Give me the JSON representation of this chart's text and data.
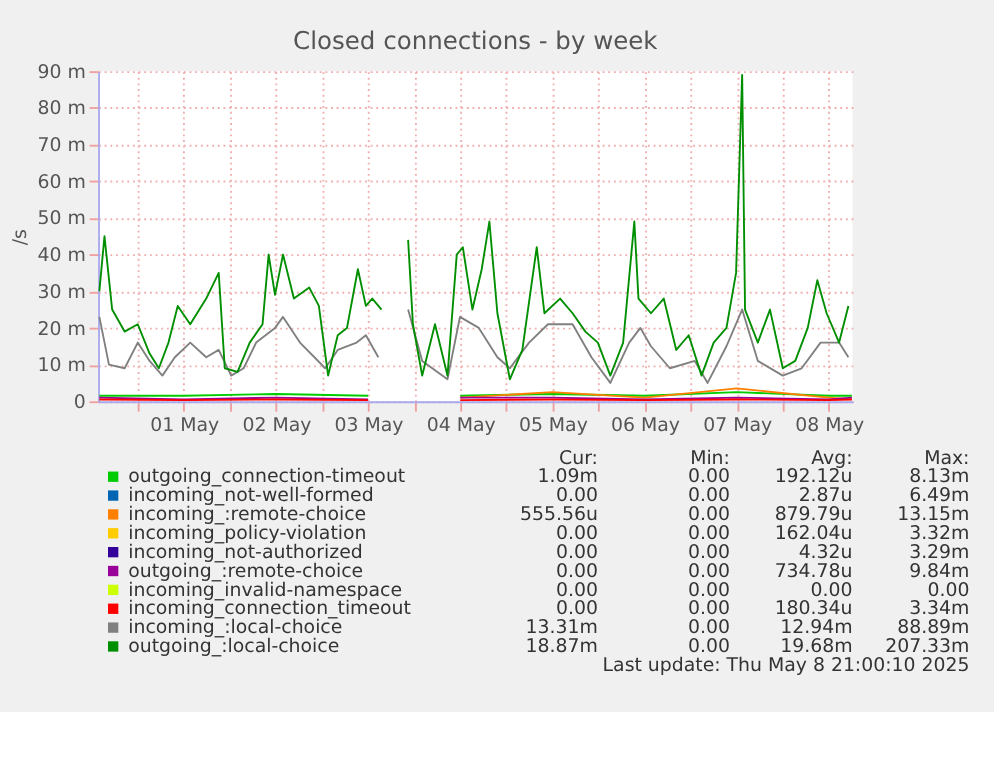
{
  "chart_data": {
    "type": "line",
    "title": "Closed connections - by week",
    "ylabel": "/s",
    "xlim": [
      "2025-04-30T13:40",
      "2025-05-08T18:10"
    ],
    "xticks": [
      {
        "value": "2025-05-01T00:00",
        "label": null
      },
      {
        "value": "2025-05-01T12:00",
        "label": "01 May"
      },
      {
        "value": "2025-05-02T00:00",
        "label": null
      },
      {
        "value": "2025-05-02T12:00",
        "label": "02 May"
      },
      {
        "value": "2025-05-03T00:00",
        "label": null
      },
      {
        "value": "2025-05-03T12:00",
        "label": "03 May"
      },
      {
        "value": "2025-05-04T00:00",
        "label": null
      },
      {
        "value": "2025-05-04T12:00",
        "label": "04 May"
      },
      {
        "value": "2025-05-05T00:00",
        "label": null
      },
      {
        "value": "2025-05-05T12:00",
        "label": "05 May"
      },
      {
        "value": "2025-05-06T00:00",
        "label": null
      },
      {
        "value": "2025-05-06T12:00",
        "label": "06 May"
      },
      {
        "value": "2025-05-07T00:00",
        "label": null
      },
      {
        "value": "2025-05-07T12:00",
        "label": "07 May"
      },
      {
        "value": "2025-05-08T00:00",
        "label": null
      },
      {
        "value": "2025-05-08T12:00",
        "label": "08 May"
      }
    ],
    "ylim": [
      0,
      90
    ],
    "yticks": [
      0,
      {
        "value": 10,
        "label": "10 m"
      },
      {
        "value": 20,
        "label": "20 m"
      },
      {
        "value": 30,
        "label": "30 m"
      },
      {
        "value": 40,
        "label": "40 m"
      },
      {
        "value": 50,
        "label": "50 m"
      },
      {
        "value": 60,
        "label": "60 m"
      },
      {
        "value": 70,
        "label": "70 m"
      },
      {
        "value": 80,
        "label": "80 m"
      },
      {
        "value": 90,
        "label": "90 m"
      }
    ],
    "grid": true,
    "legend": "bottom",
    "line_style": "solid",
    "marker": "none",
    "x": [
      "2025-04-30T14:00",
      "2025-05-01T12:00",
      "2025-05-02T12:00",
      "2025-05-03T12:00",
      "2025-05-03T18:00",
      "2025-05-04T12:00",
      "2025-05-05T12:00",
      "2025-05-06T12:00",
      "2025-05-07T12:00",
      "2025-05-08T12:00",
      "2025-05-08T18:00"
    ],
    "series": [
      {
        "name": "outgoing_connection-timeout",
        "color": "#00cc00",
        "values": [
          1.5,
          1.5,
          2,
          1.5,
          null,
          1.5,
          2,
          1.5,
          2.5,
          1.5,
          1.5
        ]
      },
      {
        "name": "incoming_not-well-formed",
        "color": "#0066b3",
        "values": [
          null,
          null,
          null,
          null,
          null,
          null,
          null,
          null,
          null,
          null,
          null
        ]
      },
      {
        "name": "incoming_:remote-choice",
        "color": "#ff8000",
        "values": [
          null,
          null,
          null,
          null,
          null,
          1,
          2.5,
          1,
          3.5,
          1,
          0.5
        ]
      },
      {
        "name": "incoming_policy-violation",
        "color": "#ffcc00",
        "values": [
          null,
          null,
          null,
          null,
          null,
          null,
          null,
          null,
          null,
          null,
          null
        ]
      },
      {
        "name": "incoming_not-authorized",
        "color": "#330099",
        "values": [
          null,
          null,
          null,
          null,
          null,
          null,
          null,
          null,
          null,
          null,
          null
        ]
      },
      {
        "name": "outgoing_:remote-choice",
        "color": "#990099",
        "values": [
          1,
          0.5,
          1,
          0.5,
          null,
          1,
          1,
          0.5,
          1,
          0.5,
          1
        ]
      },
      {
        "name": "incoming_invalid-namespace",
        "color": "#ccff00",
        "values": [
          null,
          null,
          null,
          null,
          null,
          null,
          null,
          null,
          null,
          null,
          null
        ]
      },
      {
        "name": "incoming_connection_timeout",
        "color": "#ff0000",
        "values": [
          0.5,
          0.3,
          0.5,
          0.3,
          null,
          0.3,
          0.5,
          0.3,
          0.5,
          0.3,
          0.5
        ]
      },
      {
        "name": "incoming_:local-choice",
        "color": "#808080",
        "x": [
          "2025-04-30T14:00",
          "2025-04-30T16:30",
          "2025-04-30T20:35",
          "2025-05-01T00:00",
          "2025-05-01T03:05",
          "2025-05-01T06:25",
          "2025-05-01T09:40",
          "2025-05-01T13:40",
          "2025-05-01T17:50",
          "2025-05-01T21:05",
          "2025-05-02T00:20",
          "2025-05-02T03:35",
          "2025-05-02T06:50",
          "2025-05-02T11:45",
          "2025-05-02T13:50",
          "2025-05-02T18:15",
          "2025-05-03T00:50",
          "2025-05-03T04:05",
          "2025-05-03T09:00",
          "2025-05-03T11:25",
          "2025-05-03T14:40",
          "2025-05-03T18:00",
          "2025-05-03T22:25",
          "2025-05-04T02:05",
          "2025-05-04T08:40",
          "2025-05-04T11:55",
          "2025-05-04T16:50",
          "2025-05-04T21:40",
          "2025-05-05T00:55",
          "2025-05-05T05:55",
          "2025-05-05T10:50",
          "2025-05-05T17:15",
          "2025-05-05T22:10",
          "2025-05-06T03:05",
          "2025-05-06T08:00",
          "2025-05-06T10:55",
          "2025-05-06T13:40",
          "2025-05-06T18:35",
          "2025-05-07T01:05",
          "2025-05-07T04:25",
          "2025-05-07T09:20",
          "2025-05-07T13:25",
          "2025-05-07T17:30",
          "2025-05-08T00:00",
          "2025-05-08T04:55",
          "2025-05-08T09:50",
          "2025-05-08T14:40",
          "2025-05-08T17:05"
        ],
        "values": [
          23,
          10,
          9,
          16,
          11,
          7,
          12,
          16,
          12,
          14,
          7,
          9,
          16,
          20,
          23,
          16,
          9,
          14,
          16,
          18,
          12,
          null,
          25,
          11,
          6,
          23,
          20,
          12,
          9,
          16,
          21,
          21,
          12,
          5,
          16,
          20,
          15,
          9,
          11,
          5,
          15,
          25,
          11,
          7,
          9,
          16,
          16,
          12
        ]
      },
      {
        "name": "outgoing_:local-choice",
        "color": "#008f00",
        "x": [
          "2025-04-30T14:00",
          "2025-04-30T15:20",
          "2025-04-30T17:20",
          "2025-04-30T20:35",
          "2025-05-01T00:00",
          "2025-05-01T03:05",
          "2025-05-01T05:30",
          "2025-05-01T08:00",
          "2025-05-01T10:25",
          "2025-05-01T13:40",
          "2025-05-01T17:50",
          "2025-05-01T21:05",
          "2025-05-01T22:40",
          "2025-05-02T02:00",
          "2025-05-02T05:10",
          "2025-05-02T08:30",
          "2025-05-02T10:05",
          "2025-05-02T11:45",
          "2025-05-02T13:50",
          "2025-05-02T16:40",
          "2025-05-02T20:40",
          "2025-05-02T23:10",
          "2025-05-03T01:35",
          "2025-05-03T04:05",
          "2025-05-03T06:30",
          "2025-05-03T09:20",
          "2025-05-03T11:25",
          "2025-05-03T13:05",
          "2025-05-03T15:30",
          "2025-05-03T18:00",
          "2025-05-03T22:25",
          "2025-05-03T23:40",
          "2025-05-04T02:05",
          "2025-05-04T05:25",
          "2025-05-04T08:40",
          "2025-05-04T11:05",
          "2025-05-04T12:40",
          "2025-05-04T15:10",
          "2025-05-04T17:35",
          "2025-05-04T19:35",
          "2025-05-04T21:40",
          "2025-05-05T00:55",
          "2025-05-05T04:10",
          "2025-05-05T07:55",
          "2025-05-05T09:55",
          "2025-05-05T14:00",
          "2025-05-05T17:15",
          "2025-05-05T20:35",
          "2025-05-05T23:50",
          "2025-05-06T03:05",
          "2025-05-06T06:25",
          "2025-05-06T09:20",
          "2025-05-06T10:25",
          "2025-05-06T13:40",
          "2025-05-06T17:00",
          "2025-05-06T20:15",
          "2025-05-06T23:30",
          "2025-05-07T02:50",
          "2025-05-07T06:00",
          "2025-05-07T09:20",
          "2025-05-07T11:50",
          "2025-05-07T13:25",
          "2025-05-07T14:10",
          "2025-05-07T17:30",
          "2025-05-07T20:40",
          "2025-05-08T00:00",
          "2025-05-08T03:15",
          "2025-05-08T06:30",
          "2025-05-08T09:00",
          "2025-05-08T11:25",
          "2025-05-08T14:40",
          "2025-05-08T17:05"
        ],
        "values": [
          30,
          45,
          25,
          19,
          21,
          13,
          9,
          16,
          26,
          21,
          28,
          35,
          9,
          8,
          16,
          21,
          40,
          29,
          40,
          28,
          31,
          26,
          7,
          18,
          20,
          36,
          26,
          28,
          25,
          null,
          44,
          21,
          7,
          21,
          7,
          40,
          42,
          25,
          36,
          49,
          24,
          6,
          14,
          42,
          24,
          28,
          24,
          19,
          16,
          7,
          16,
          49,
          28,
          24,
          28,
          14,
          18,
          7,
          16,
          20,
          35,
          89,
          25,
          16,
          25,
          9,
          11,
          20,
          33,
          24,
          16,
          26
        ]
      }
    ],
    "annotations": [
      "Cur:",
      "Min:",
      "Avg:",
      "Max:",
      "1.09m",
      "0.00",
      "192.12u",
      "8.13m",
      "0.00",
      "0.00",
      "2.87u",
      "6.49m",
      "555.56u",
      "0.00",
      "879.79u",
      "13.15m",
      "0.00",
      "0.00",
      "162.04u",
      "3.32m",
      "0.00",
      "0.00",
      "4.32u",
      "3.29m",
      "0.00",
      "0.00",
      "734.78u",
      "9.84m",
      "0.00",
      "0.00",
      "0.00",
      "0.00",
      "0.00",
      "0.00",
      "180.34u",
      "3.34m",
      "13.31m",
      "0.00",
      "12.94m",
      "88.89m",
      "18.87m",
      "0.00",
      "19.68m",
      "207.33m",
      "Last update: Thu May  8 21:00:10 2025"
    ]
  }
}
